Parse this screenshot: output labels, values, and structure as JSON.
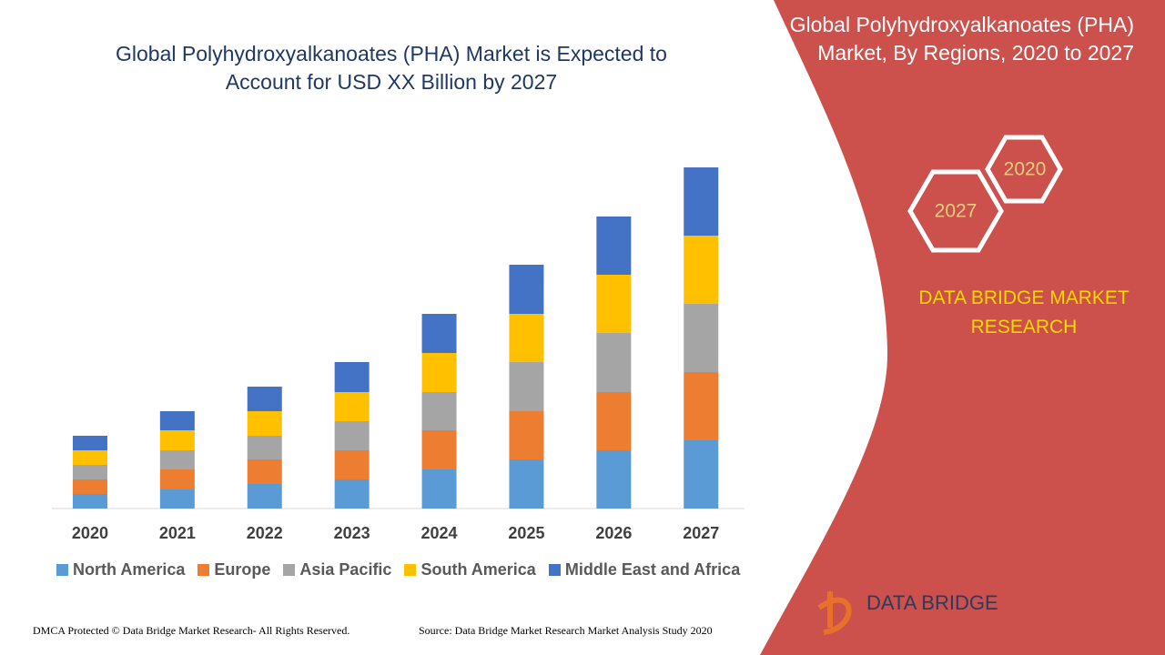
{
  "chart_data": {
    "type": "bar",
    "stacked": true,
    "title": "Global Polyhydroxyalkanoates (PHA) Market is Expected to Account for USD XX Billion by 2027",
    "categories": [
      "2020",
      "2021",
      "2022",
      "2023",
      "2024",
      "2025",
      "2026",
      "2027"
    ],
    "series": [
      {
        "name": "North America",
        "color": "#5b9bd5",
        "values": [
          16,
          21,
          27,
          32,
          43,
          54,
          64,
          75
        ]
      },
      {
        "name": "Europe",
        "color": "#ed7d31",
        "values": [
          16,
          22,
          27,
          32,
          43,
          53,
          64,
          75
        ]
      },
      {
        "name": "Asia Pacific",
        "color": "#a5a5a5",
        "values": [
          16,
          21,
          26,
          32,
          42,
          54,
          65,
          75
        ]
      },
      {
        "name": "South America",
        "color": "#ffc000",
        "values": [
          16,
          22,
          27,
          32,
          43,
          53,
          64,
          75
        ]
      },
      {
        "name": "Middle East and Africa",
        "color": "#4472c4",
        "values": [
          16,
          21,
          27,
          33,
          43,
          54,
          64,
          75
        ]
      }
    ]
  },
  "panel": {
    "title": "Global Polyhydroxyalkanoates (PHA) Market, By Regions, 2020 to 2027",
    "hex_start": "2020",
    "hex_end": "2027",
    "brand": "DATA BRIDGE MARKET RESEARCH"
  },
  "footer": {
    "copyright": "DMCA Protected © Data Bridge Market Research- All Rights Reserved.",
    "source": "Source: Data Bridge Market Research Market Analysis Study 2020",
    "logo": "DATA BRIDGE"
  }
}
